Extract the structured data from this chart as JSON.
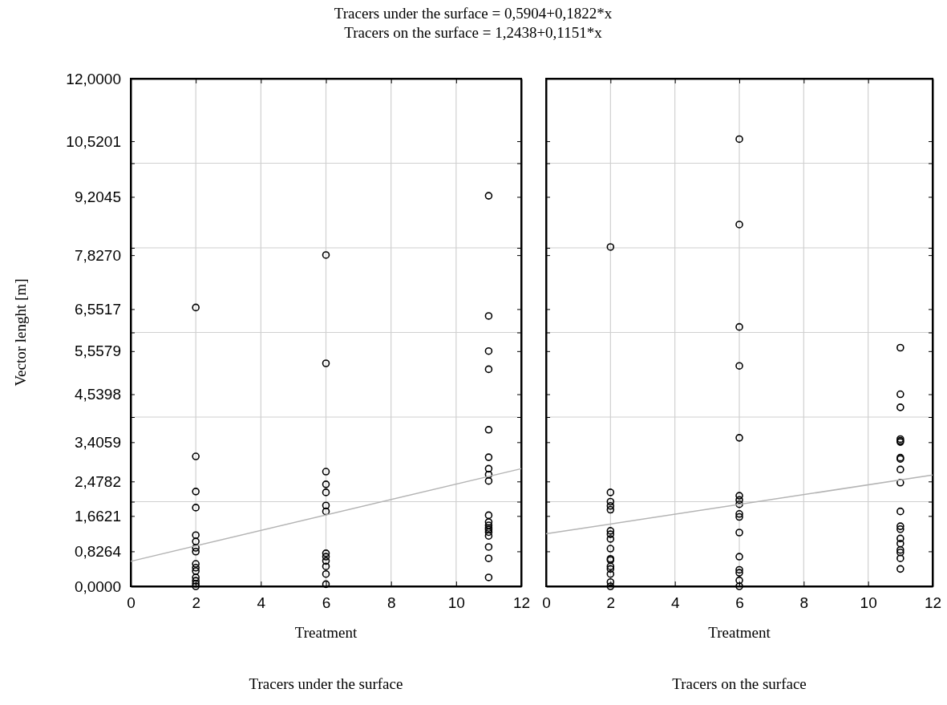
{
  "chart_data": [
    {
      "type": "scatter",
      "title": "Tracers under the surface = 0,5904+0,1822*x",
      "xlabel": "Treatment",
      "ylabel": "Vector lenght [m]",
      "annotations": [
        "Tracers under the surface"
      ],
      "xlim": [
        0,
        12
      ],
      "xticks": [
        0,
        2,
        4,
        6,
        8,
        10,
        12
      ],
      "ylim": [
        0,
        12
      ],
      "yticks": [
        {
          "value": 0,
          "label": "0,0000"
        },
        {
          "value": 0.8264,
          "label": "0,8264"
        },
        {
          "value": 1.6621,
          "label": "1,6621"
        },
        {
          "value": 2,
          "label": null
        },
        {
          "value": 2.4782,
          "label": "2,4782"
        },
        {
          "value": 3.4059,
          "label": "3,4059"
        },
        {
          "value": 4,
          "label": null
        },
        {
          "value": 4.5398,
          "label": "4,5398"
        },
        {
          "value": 5.5579,
          "label": "5,5579"
        },
        {
          "value": 6,
          "label": null
        },
        {
          "value": 6.5517,
          "label": "6,5517"
        },
        {
          "value": 7.827,
          "label": "7,8270"
        },
        {
          "value": 8,
          "label": null
        },
        {
          "value": 9.2045,
          "label": "9,2045"
        },
        {
          "value": 10,
          "label": null
        },
        {
          "value": 10.5201,
          "label": "10,5201"
        },
        {
          "value": 12,
          "label": "12,0000"
        }
      ],
      "grid": true,
      "series": [
        {
          "color": "#000000",
          "marker": "circle",
          "x": [
            2,
            2,
            2,
            2,
            2,
            2,
            2,
            2,
            2,
            2,
            2,
            2,
            2,
            2,
            2,
            6,
            6,
            6,
            6,
            6,
            6,
            6,
            6,
            6,
            6,
            6,
            6,
            6,
            11,
            11,
            11,
            11,
            11,
            11,
            11,
            11,
            11,
            11,
            11,
            11,
            11,
            11,
            11,
            11,
            11,
            11,
            11
          ],
          "values": [
            6.59,
            3.07,
            2.24,
            1.86,
            1.21,
            1.06,
            0.91,
            0.82,
            0.53,
            0.44,
            0.36,
            0.21,
            0.13,
            0.06,
            0.0,
            7.83,
            5.27,
            2.71,
            2.41,
            2.22,
            1.91,
            1.77,
            0.78,
            0.7,
            0.6,
            0.47,
            0.29,
            0.05,
            9.23,
            6.39,
            5.56,
            5.13,
            3.7,
            3.05,
            2.78,
            2.64,
            2.49,
            1.68,
            1.52,
            1.44,
            1.38,
            1.34,
            1.28,
            1.19,
            0.93,
            0.66,
            0.21
          ]
        },
        {
          "type": "line",
          "color": "#b4b4b4",
          "marker": "none",
          "x": [
            0,
            12
          ],
          "values": [
            0.59,
            2.78
          ]
        }
      ]
    },
    {
      "type": "scatter",
      "title": "Tracers on the surface = 1,2438+0,1151*x",
      "xlabel": "Treatment",
      "annotations": [
        "Tracers on the surface"
      ],
      "xlim": [
        0,
        12
      ],
      "xticks": [
        0,
        2,
        4,
        6,
        8,
        10,
        12
      ],
      "ylim": [
        0,
        12
      ],
      "yticks": [
        0,
        0.8264,
        1.6621,
        2,
        2.4782,
        3.4059,
        4,
        4.5398,
        5.5579,
        6,
        6.5517,
        7.827,
        8,
        9.2045,
        10,
        10.5201,
        12
      ],
      "tick_labels": "x",
      "grid": true,
      "series": [
        {
          "color": "#000000",
          "marker": "circle",
          "x": [
            2,
            2,
            2,
            2,
            2,
            2,
            2,
            2,
            2,
            2,
            2,
            2,
            2,
            2,
            2,
            2,
            6,
            6,
            6,
            6,
            6,
            6,
            6,
            6,
            6,
            6,
            6,
            6,
            6,
            6,
            6,
            6,
            11,
            11,
            11,
            11,
            11,
            11,
            11,
            11,
            11,
            11,
            11,
            11,
            11,
            11,
            11,
            11,
            11,
            11,
            11
          ],
          "values": [
            8.02,
            2.22,
            2.0,
            1.9,
            1.81,
            1.31,
            1.23,
            1.12,
            0.89,
            0.65,
            0.62,
            0.47,
            0.41,
            0.29,
            0.1,
            0.0,
            10.57,
            8.55,
            6.13,
            5.21,
            3.51,
            2.14,
            2.04,
            1.94,
            1.71,
            1.64,
            1.27,
            0.7,
            0.39,
            0.32,
            0.14,
            0.0,
            5.64,
            4.54,
            4.23,
            3.48,
            3.44,
            3.41,
            3.04,
            3.01,
            2.76,
            2.45,
            1.77,
            1.42,
            1.35,
            1.13,
            1.01,
            0.86,
            0.8,
            0.66,
            0.41
          ]
        },
        {
          "type": "line",
          "color": "#b4b4b4",
          "marker": "none",
          "x": [
            0,
            12
          ],
          "values": [
            1.24,
            2.63
          ]
        }
      ]
    }
  ]
}
